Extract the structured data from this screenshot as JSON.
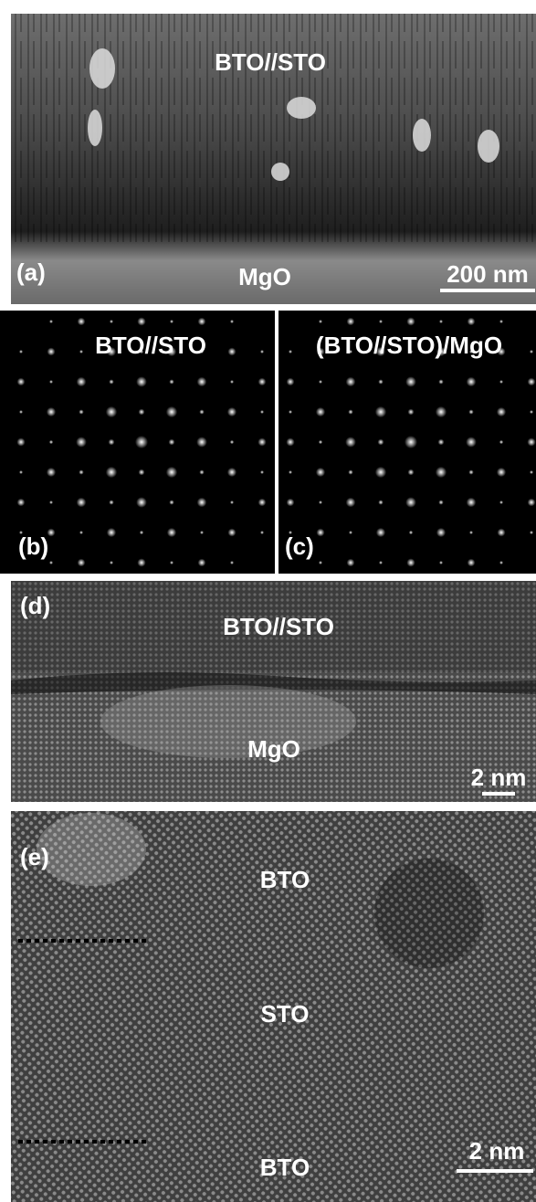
{
  "panels": [
    {
      "label": "(a)",
      "texts": [
        "BTO//STO",
        "MgO"
      ],
      "scale_bar": "200 nm"
    },
    {
      "label": "(b)",
      "texts": [
        "BTO//STO"
      ]
    },
    {
      "label": "(c)",
      "texts": [
        "(BTO//STO)/MgO"
      ]
    },
    {
      "label": "(d)",
      "texts": [
        "BTO//STO",
        "MgO"
      ],
      "scale_bar": "2 nm"
    },
    {
      "label": "(e)",
      "texts": [
        "BTO",
        "STO",
        "BTO"
      ],
      "scale_bar": "2 nm"
    }
  ]
}
